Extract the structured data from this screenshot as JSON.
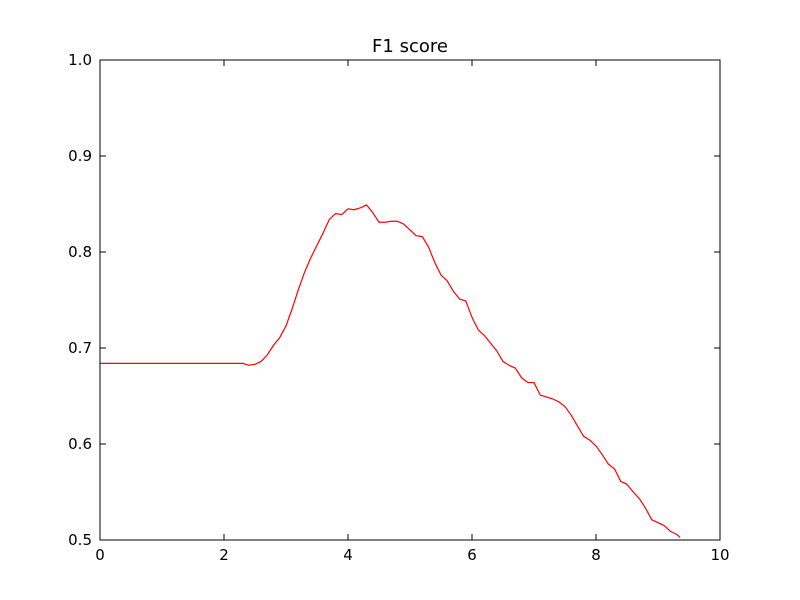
{
  "chart_data": {
    "type": "line",
    "title": "F1 score",
    "xlabel": "",
    "ylabel": "",
    "xlim": [
      0,
      10
    ],
    "ylim": [
      0.5,
      1.0
    ],
    "xticks": [
      0,
      2,
      4,
      6,
      8,
      10
    ],
    "xtick_labels": [
      "0",
      "2",
      "4",
      "6",
      "8",
      "10"
    ],
    "yticks": [
      0.5,
      0.6,
      0.7,
      0.8,
      0.9,
      1.0
    ],
    "ytick_labels": [
      "0.5",
      "0.6",
      "0.7",
      "0.8",
      "0.9",
      "1.0"
    ],
    "grid": false,
    "legend": "none",
    "series": [
      {
        "color": "#ff0000",
        "x": [
          0.0,
          0.5,
          1.0,
          1.5,
          2.0,
          2.3,
          2.4,
          2.5,
          2.6,
          2.7,
          2.8,
          2.9,
          3.0,
          3.1,
          3.2,
          3.3,
          3.4,
          3.5,
          3.6,
          3.7,
          3.8,
          3.9,
          4.0,
          4.1,
          4.2,
          4.3,
          4.4,
          4.5,
          4.6,
          4.7,
          4.8,
          4.9,
          5.0,
          5.1,
          5.2,
          5.3,
          5.4,
          5.5,
          5.6,
          5.7,
          5.8,
          5.9,
          6.0,
          6.1,
          6.2,
          6.3,
          6.4,
          6.5,
          6.6,
          6.7,
          6.8,
          6.9,
          7.0,
          7.1,
          7.2,
          7.3,
          7.4,
          7.5,
          7.6,
          7.7,
          7.8,
          7.9,
          8.0,
          8.1,
          8.2,
          8.3,
          8.4,
          8.5,
          8.6,
          8.7,
          8.8,
          8.9,
          9.0,
          9.1,
          9.2,
          9.3,
          9.35
        ],
        "y": [
          0.684,
          0.684,
          0.684,
          0.684,
          0.684,
          0.684,
          0.682,
          0.683,
          0.686,
          0.693,
          0.703,
          0.711,
          0.723,
          0.741,
          0.761,
          0.779,
          0.794,
          0.807,
          0.82,
          0.834,
          0.84,
          0.839,
          0.845,
          0.844,
          0.846,
          0.849,
          0.841,
          0.831,
          0.831,
          0.832,
          0.832,
          0.829,
          0.823,
          0.817,
          0.816,
          0.805,
          0.789,
          0.776,
          0.77,
          0.759,
          0.751,
          0.749,
          0.732,
          0.719,
          0.713,
          0.705,
          0.697,
          0.686,
          0.682,
          0.679,
          0.669,
          0.664,
          0.664,
          0.651,
          0.649,
          0.647,
          0.644,
          0.639,
          0.63,
          0.619,
          0.608,
          0.604,
          0.598,
          0.589,
          0.579,
          0.574,
          0.561,
          0.558,
          0.55,
          0.543,
          0.533,
          0.521,
          0.518,
          0.515,
          0.509,
          0.506,
          0.503
        ]
      }
    ]
  }
}
